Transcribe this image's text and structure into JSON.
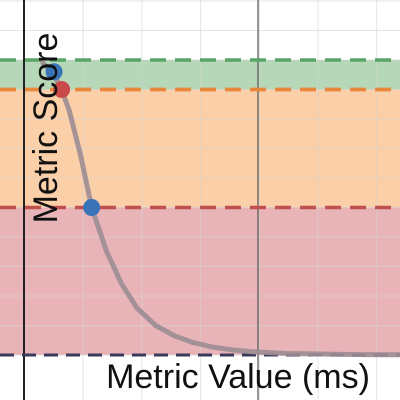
{
  "chart_data": {
    "type": "line",
    "xlabel": "Metric Value (ms)",
    "ylabel": "Metric Score",
    "xlim": [
      0,
      1
    ],
    "ylim": [
      0,
      1
    ],
    "grid": true,
    "bands": [
      {
        "from": 0.0,
        "to": 0.5,
        "color": "#e8b4b8",
        "line_color": "#c0504d"
      },
      {
        "from": 0.5,
        "to": 0.9,
        "color": "#fbcfa8",
        "line_color": "#e8883a"
      },
      {
        "from": 0.9,
        "to": 1.0,
        "color": "#b6d8b8",
        "line_color": "#5aa468"
      }
    ],
    "series": [
      {
        "curve_color": "#9c8c94",
        "x": [
          0.05,
          0.08,
          0.1,
          0.12,
          0.15,
          0.18,
          0.22,
          0.26,
          0.3,
          0.35,
          0.4,
          0.45,
          0.5,
          0.55,
          0.6,
          0.65,
          0.7,
          0.75,
          0.8,
          0.85,
          0.9,
          0.95,
          1.0
        ],
        "y": [
          0.99,
          0.95,
          0.9,
          0.83,
          0.68,
          0.5,
          0.35,
          0.24,
          0.16,
          0.1,
          0.065,
          0.042,
          0.027,
          0.018,
          0.012,
          0.008,
          0.005,
          0.004,
          0.003,
          0.002,
          0.0015,
          0.001,
          0.0008
        ]
      }
    ],
    "points": [
      {
        "x": 0.1,
        "y": 0.9,
        "color": "#c94a4a"
      },
      {
        "x": 0.18,
        "y": 0.5,
        "color": "#3a74b8"
      },
      {
        "x": 0.08,
        "y": 0.96,
        "color": "#3a74b8"
      }
    ],
    "colors": {
      "grid": "#d4d4d4",
      "axis": "#222222",
      "baseline": "#3a3a5a"
    }
  }
}
